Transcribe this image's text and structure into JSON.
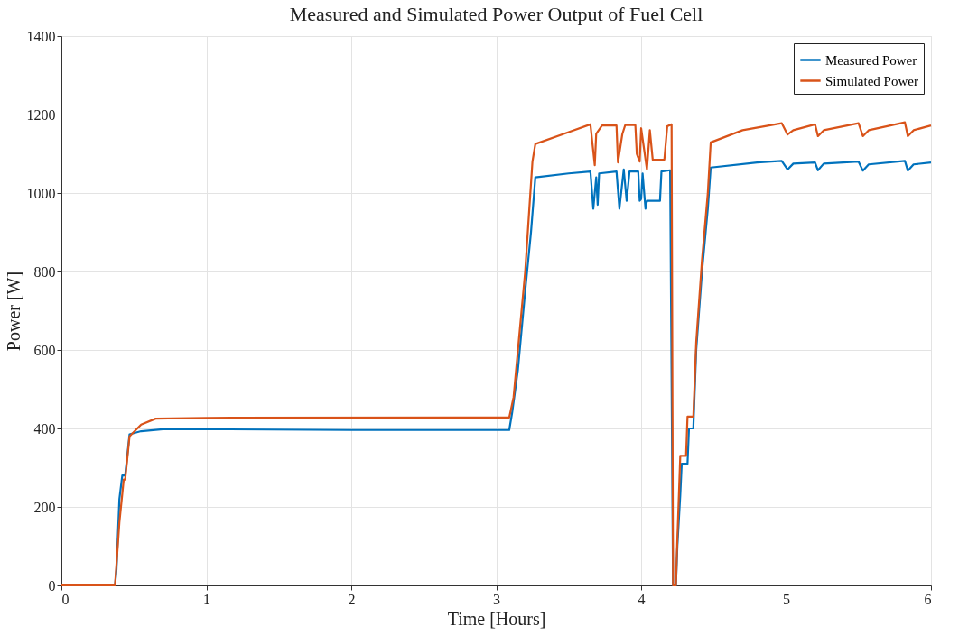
{
  "chart_data": {
    "type": "line",
    "title": "Measured and Simulated Power Output of Fuel Cell",
    "xlabel": "Time [Hours]",
    "ylabel": "Power [W]",
    "xlim": [
      0,
      6
    ],
    "ylim": [
      0,
      1400
    ],
    "xticks": [
      0,
      1,
      2,
      3,
      4,
      5,
      6
    ],
    "yticks": [
      0,
      200,
      400,
      600,
      800,
      1000,
      1200,
      1400
    ],
    "grid": true,
    "legend": "top right",
    "marker": "none",
    "line_style": "solid",
    "series": [
      {
        "name": "Measured Power",
        "color": "#0072bd",
        "x": [
          0,
          0.37,
          0.38,
          0.4,
          0.42,
          0.44,
          0.47,
          0.55,
          0.7,
          1,
          2,
          3.09,
          3.11,
          3.15,
          3.2,
          3.24,
          3.27,
          3.5,
          3.65,
          3.67,
          3.69,
          3.7,
          3.71,
          3.83,
          3.85,
          3.88,
          3.9,
          3.92,
          3.98,
          3.99,
          4.0,
          4.01,
          4.03,
          4.04,
          4.13,
          4.14,
          4.2,
          4.22,
          4.24,
          4.25,
          4.27,
          4.28,
          4.32,
          4.33,
          4.36,
          4.38,
          4.42,
          4.46,
          4.48,
          4.8,
          4.97,
          5.01,
          5.05,
          5.2,
          5.22,
          5.26,
          5.5,
          5.53,
          5.57,
          5.82,
          5.84,
          5.88,
          6
        ],
        "values": [
          0,
          0,
          40,
          220,
          280,
          280,
          385,
          393,
          398,
          398,
          396,
          396,
          440,
          550,
          750,
          900,
          1040,
          1050,
          1055,
          960,
          1040,
          970,
          1050,
          1055,
          960,
          1060,
          980,
          1055,
          1055,
          980,
          985,
          1050,
          960,
          980,
          980,
          1055,
          1058,
          0,
          0,
          100,
          230,
          310,
          310,
          400,
          400,
          600,
          800,
          960,
          1065,
          1078,
          1082,
          1060,
          1075,
          1078,
          1058,
          1075,
          1080,
          1057,
          1073,
          1082,
          1057,
          1073,
          1078
        ]
      },
      {
        "name": "Simulated Power",
        "color": "#d95319",
        "x": [
          0,
          0.37,
          0.4,
          0.43,
          0.44,
          0.47,
          0.55,
          0.65,
          1,
          3.09,
          3.1,
          3.12,
          3.2,
          3.25,
          3.27,
          3.5,
          3.65,
          3.68,
          3.69,
          3.73,
          3.83,
          3.84,
          3.87,
          3.89,
          3.96,
          3.97,
          3.99,
          4.0,
          4.04,
          4.06,
          4.08,
          4.16,
          4.18,
          4.21,
          4.22,
          4.24,
          4.25,
          4.27,
          4.31,
          4.32,
          4.36,
          4.38,
          4.42,
          4.46,
          4.48,
          4.7,
          4.97,
          5.01,
          5.05,
          5.2,
          5.22,
          5.26,
          5.5,
          5.53,
          5.57,
          5.82,
          5.84,
          5.88,
          6
        ],
        "values": [
          0,
          0,
          160,
          270,
          270,
          380,
          410,
          425,
          427,
          428,
          445,
          480,
          800,
          1080,
          1125,
          1155,
          1175,
          1071,
          1151,
          1172,
          1172,
          1078,
          1150,
          1173,
          1173,
          1100,
          1080,
          1165,
          1060,
          1160,
          1085,
          1085,
          1170,
          1175,
          0,
          0,
          120,
          330,
          330,
          430,
          430,
          620,
          830,
          1000,
          1129,
          1160,
          1178,
          1149,
          1160,
          1175,
          1145,
          1160,
          1178,
          1145,
          1160,
          1180,
          1145,
          1160,
          1172
        ]
      }
    ]
  }
}
